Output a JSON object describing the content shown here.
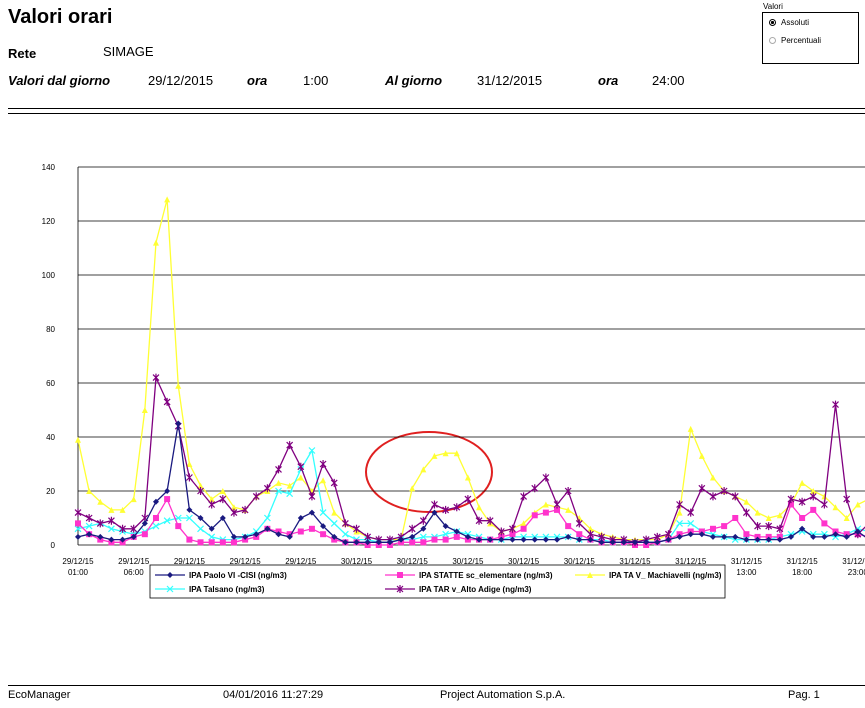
{
  "header": {
    "title": "Valori orari",
    "rete_label": "Rete",
    "rete": "SIMAGE",
    "from_label": "Valori dal giorno",
    "from_date": "29/12/2015",
    "from_hour_label": "ora",
    "from_hour": "1:00",
    "to_label": "Al giorno",
    "to_date": "31/12/2015",
    "to_hour_label": "ora",
    "to_hour": "24:00"
  },
  "options": {
    "title": "Valori",
    "items": [
      {
        "label": "Assoluti",
        "selected": true
      },
      {
        "label": "Percentuali",
        "selected": false
      }
    ]
  },
  "chart_data": {
    "type": "line",
    "categories": [
      "29/12/15 01:00",
      null,
      null,
      null,
      null,
      "29/12/15 06:00",
      null,
      null,
      null,
      null,
      "29/12/15 11:00",
      null,
      null,
      null,
      null,
      "29/12/15 16:00",
      null,
      null,
      null,
      null,
      "29/12/15 21:00",
      null,
      null,
      null,
      null,
      "30/12/15 02:00",
      null,
      null,
      null,
      null,
      "30/12/15 07:00",
      null,
      null,
      null,
      null,
      "30/12/15 12:00",
      null,
      null,
      null,
      null,
      "30/12/15 17:00",
      null,
      null,
      null,
      null,
      "30/12/15 22:00",
      null,
      null,
      null,
      null,
      "31/12/15 03:00",
      null,
      null,
      null,
      null,
      "31/12/15 08:00",
      null,
      null,
      null,
      null,
      "31/12/15 13:00",
      null,
      null,
      null,
      null,
      "31/12/15 18:00",
      null,
      null,
      null,
      null,
      "31/12/15 23:00",
      null
    ],
    "ylim": [
      0,
      140
    ],
    "yticks": [
      0,
      20,
      40,
      60,
      80,
      100,
      120,
      140
    ],
    "grid": true,
    "series": [
      {
        "name": "IPA Paolo VI -CISI (ng/m3)",
        "color": "#1a1a80",
        "marker": "diamond",
        "values": [
          3,
          4,
          3,
          2,
          2,
          3,
          8,
          16,
          20,
          45,
          13,
          10,
          6,
          10,
          3,
          3,
          4,
          6,
          4,
          3,
          10,
          12,
          7,
          3,
          1,
          1,
          1,
          1,
          1,
          2,
          3,
          6,
          12,
          7,
          5,
          3,
          2,
          2,
          2,
          2,
          2,
          2,
          2,
          2,
          3,
          2,
          2,
          1,
          1,
          1,
          1,
          1,
          1,
          2,
          3,
          4,
          4,
          3,
          3,
          3,
          2,
          2,
          2,
          2,
          3,
          6,
          3,
          3,
          4,
          3,
          5,
          2
        ]
      },
      {
        "name": "IPA STATTE sc_elementare (ng/m3)",
        "color": "#ff33cc",
        "marker": "square",
        "values": [
          8,
          4,
          2,
          1,
          1,
          3,
          4,
          10,
          17,
          7,
          2,
          1,
          1,
          1,
          1,
          2,
          3,
          6,
          5,
          4,
          5,
          6,
          4,
          2,
          1,
          1,
          0,
          0,
          0,
          1,
          1,
          1,
          2,
          2,
          3,
          2,
          2,
          2,
          3,
          4,
          6,
          11,
          12,
          13,
          7,
          4,
          2,
          1,
          1,
          1,
          0,
          0,
          1,
          2,
          4,
          5,
          5,
          6,
          7,
          10,
          4,
          3,
          3,
          3,
          15,
          10,
          13,
          8,
          5,
          4,
          4,
          3
        ]
      },
      {
        "name": "IPA TA V_ Machiavelli (ng/m3)",
        "color": "#ffff33",
        "marker": "triangle",
        "values": [
          39,
          20,
          16,
          13,
          13,
          17,
          50,
          112,
          128,
          59,
          30,
          22,
          17,
          20,
          14,
          13,
          18,
          20,
          23,
          22,
          25,
          20,
          24,
          12,
          8,
          5,
          3,
          2,
          2,
          2,
          21,
          28,
          33,
          34,
          34,
          25,
          14,
          8,
          5,
          6,
          8,
          12,
          15,
          14,
          13,
          10,
          6,
          4,
          3,
          2,
          2,
          2,
          2,
          4,
          12,
          43,
          33,
          25,
          20,
          18,
          16,
          12,
          10,
          11,
          15,
          23,
          20,
          18,
          14,
          10,
          15,
          17
        ]
      },
      {
        "name": "IPA Talsano (ng/m3)",
        "color": "#33ffff",
        "marker": "cross",
        "values": [
          6,
          7,
          8,
          6,
          5,
          4,
          5,
          7,
          9,
          10,
          10,
          6,
          3,
          2,
          2,
          3,
          5,
          10,
          20,
          19,
          28,
          35,
          12,
          8,
          4,
          2,
          2,
          1,
          1,
          2,
          2,
          3,
          3,
          4,
          5,
          4,
          3,
          2,
          2,
          3,
          3,
          3,
          3,
          3,
          3,
          2,
          2,
          2,
          1,
          1,
          1,
          1,
          1,
          2,
          8,
          8,
          5,
          4,
          3,
          2,
          2,
          2,
          2,
          3,
          4,
          5,
          4,
          4,
          3,
          4,
          6,
          5
        ]
      },
      {
        "name": "IPA TAR v_Alto Adige (ng/m3)",
        "color": "#800080",
        "marker": "star",
        "values": [
          12,
          10,
          8,
          9,
          6,
          6,
          10,
          62,
          53,
          44,
          25,
          20,
          15,
          17,
          12,
          13,
          18,
          21,
          28,
          37,
          29,
          18,
          30,
          23,
          8,
          6,
          3,
          2,
          2,
          3,
          6,
          9,
          15,
          13,
          14,
          17,
          9,
          9,
          5,
          6,
          18,
          21,
          25,
          15,
          20,
          8,
          4,
          3,
          2,
          2,
          1,
          2,
          3,
          4,
          15,
          12,
          21,
          18,
          20,
          18,
          12,
          7,
          7,
          6,
          17,
          16,
          18,
          15,
          52,
          17,
          4,
          8
        ]
      }
    ]
  },
  "footer": {
    "app": "EcoManager",
    "timestamp": "04/01/2016 11:27:29",
    "company": "Project Automation S.p.A.",
    "page": "Pag. 1"
  }
}
